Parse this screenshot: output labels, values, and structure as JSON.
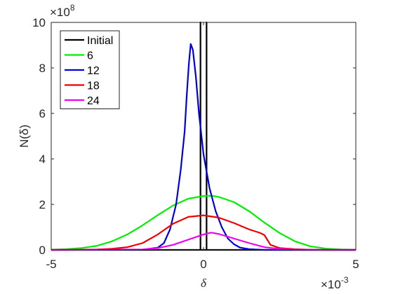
{
  "chart_data": {
    "type": "line",
    "xlabel": "δ",
    "ylabel": "N(δ)",
    "xlim": [
      -5,
      5
    ],
    "ylim": [
      0,
      10
    ],
    "x_ticks": [
      "-5",
      "0",
      "5"
    ],
    "y_ticks": [
      "0",
      "2",
      "4",
      "6",
      "8",
      "10"
    ],
    "x_exponent": {
      "base": "×10",
      "power": "-3"
    },
    "y_exponent": {
      "base": "×10",
      "power": "8"
    },
    "grid": false,
    "legend_position": "top-left",
    "series": [
      {
        "name": "Initial",
        "color": "#000000",
        "x": [
          -5,
          -0.1,
          -0.1,
          -0.1,
          0.1,
          0.1,
          0.1,
          5
        ],
        "y": [
          0,
          0,
          10,
          0,
          0,
          10,
          0,
          0
        ]
      },
      {
        "name": "6",
        "color": "#00ee00",
        "x": [
          -5,
          -4.5,
          -4,
          -3.5,
          -3,
          -2.5,
          -2,
          -1.5,
          -1,
          -0.5,
          0,
          0.25,
          0.5,
          1,
          1.5,
          2,
          2.5,
          3,
          3.5,
          4,
          4.5,
          5
        ],
        "y": [
          0.01,
          0.03,
          0.08,
          0.18,
          0.38,
          0.68,
          1.08,
          1.53,
          1.95,
          2.25,
          2.37,
          2.38,
          2.33,
          2.1,
          1.7,
          1.2,
          0.74,
          0.38,
          0.16,
          0.06,
          0.02,
          0.01
        ]
      },
      {
        "name": "12",
        "color": "#0000dd",
        "x": [
          -5,
          -2,
          -1.5,
          -1.3,
          -1.1,
          -0.9,
          -0.75,
          -0.62,
          -0.55,
          -0.48,
          -0.42,
          -0.35,
          -0.25,
          -0.15,
          0,
          0.2,
          0.4,
          0.6,
          0.8,
          1,
          1.2,
          1.5,
          2,
          5
        ],
        "y": [
          0,
          0.01,
          0.1,
          0.3,
          0.9,
          2.0,
          3.5,
          5.2,
          6.8,
          8.2,
          9.05,
          8.8,
          7.6,
          6.0,
          4.2,
          2.7,
          1.7,
          1.0,
          0.5,
          0.25,
          0.1,
          0.03,
          0,
          0
        ]
      },
      {
        "name": "18",
        "color": "#ee0000",
        "x": [
          -5,
          -3.5,
          -3,
          -2.5,
          -2,
          -1.5,
          -1,
          -0.5,
          0,
          0.5,
          1,
          1.5,
          1.85,
          2.0,
          2.2,
          2.5,
          3,
          3.5,
          4,
          5
        ],
        "y": [
          0,
          0.02,
          0.05,
          0.12,
          0.3,
          0.68,
          1.15,
          1.45,
          1.52,
          1.42,
          1.18,
          0.9,
          0.75,
          0.65,
          0.22,
          0.08,
          0.03,
          0.01,
          0,
          0
        ]
      },
      {
        "name": "24",
        "color": "#ee00ee",
        "x": [
          -5,
          -2,
          -1.5,
          -1,
          -0.5,
          0,
          0.25,
          0.5,
          1,
          1.5,
          2,
          2.5,
          3,
          5
        ],
        "y": [
          0,
          0.02,
          0.08,
          0.22,
          0.45,
          0.68,
          0.76,
          0.7,
          0.5,
          0.3,
          0.12,
          0.04,
          0.01,
          0
        ]
      }
    ]
  }
}
